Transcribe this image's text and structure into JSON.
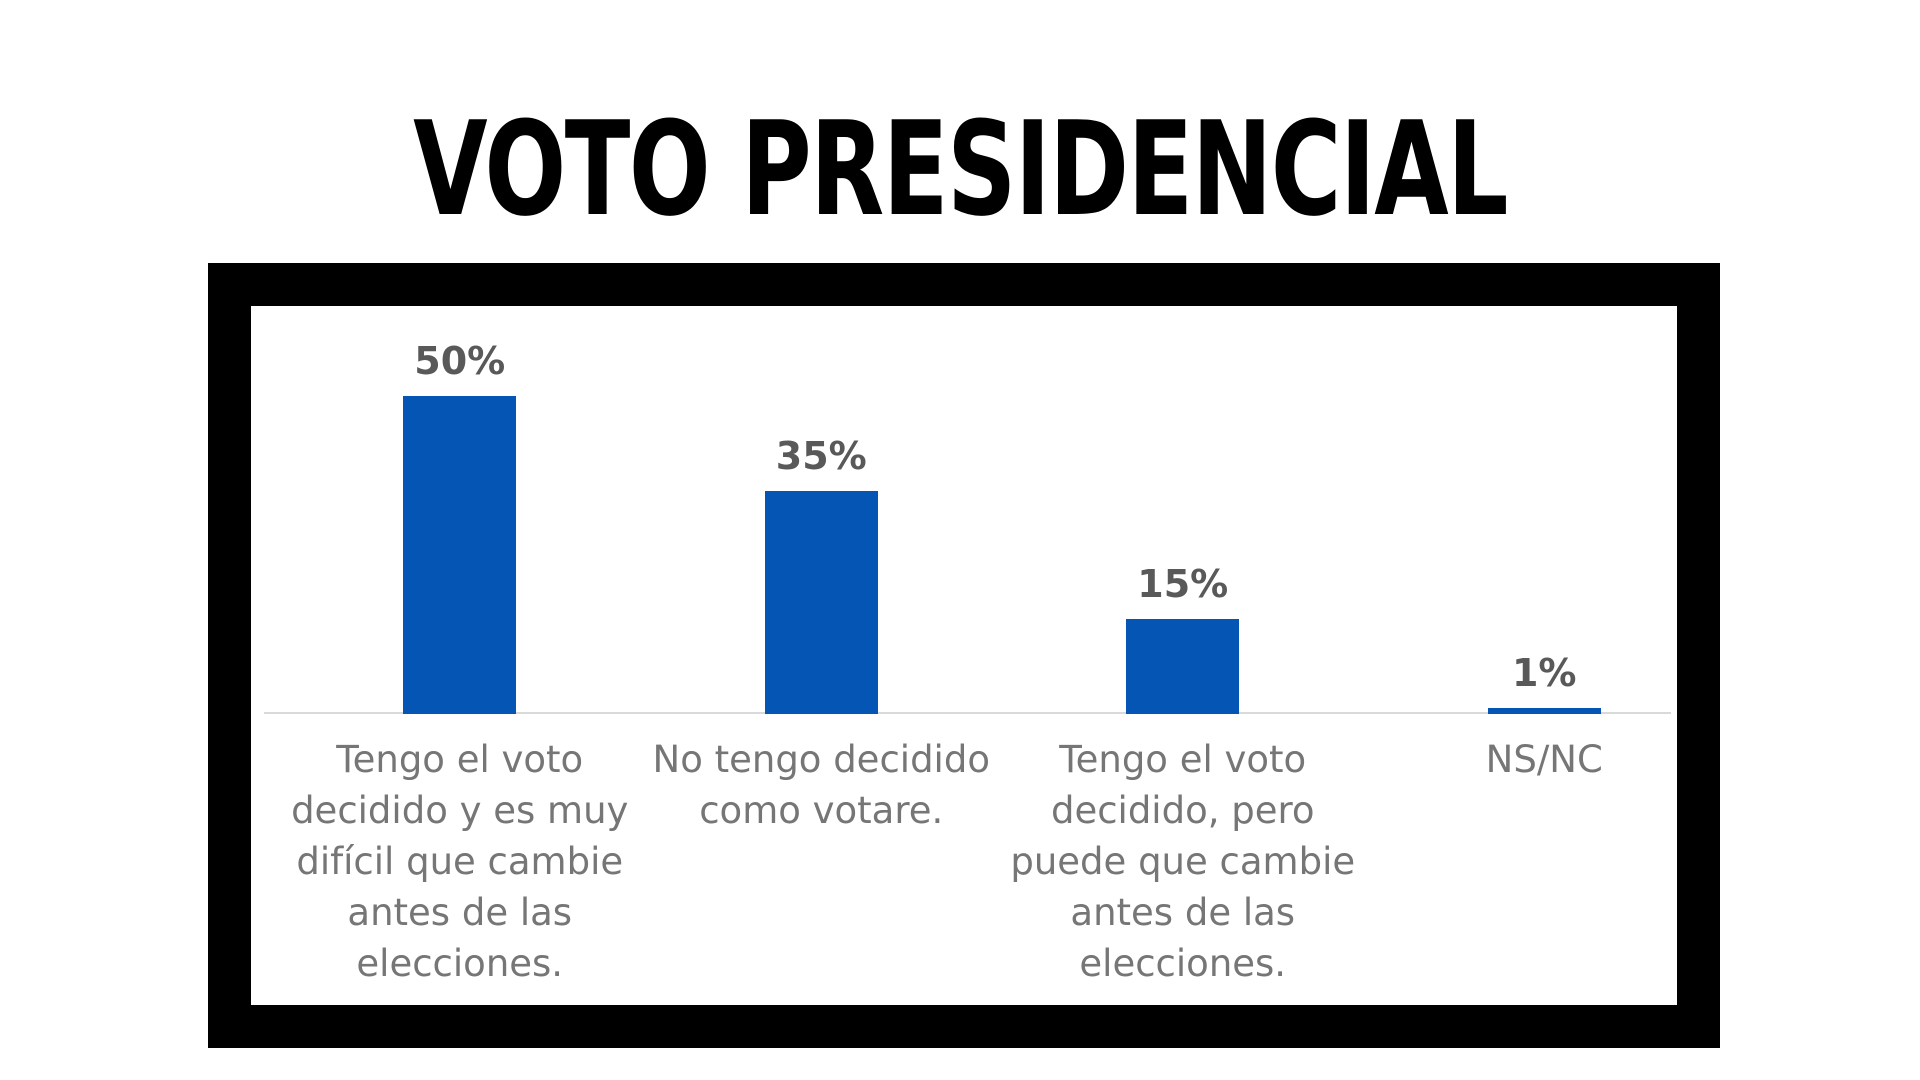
{
  "page": {
    "background": "#FFFFFF"
  },
  "chart_data": {
    "type": "bar",
    "title": "VOTO PRESIDENCIAL",
    "categories": [
      "Tengo el voto decidido y es muy difícil que cambie antes de las elecciones.",
      "No tengo decidido como votare.",
      "Tengo el voto decidido, pero puede que cambie antes de las elecciones.",
      "NS/NC"
    ],
    "category_lines": [
      "Tengo el voto\ndecidido y es muy\ndifícil que cambie\nantes de las\nelecciones.",
      "No tengo decidido\ncomo votare.",
      "Tengo el voto\ndecidido, pero\npuede que cambie\nantes de las\nelecciones.",
      "NS/NC"
    ],
    "values": [
      50,
      35,
      15,
      1
    ],
    "value_labels": [
      "50%",
      "35%",
      "15%",
      "1%"
    ],
    "xlabel": "",
    "ylabel": "",
    "ylim": [
      0,
      64
    ],
    "grid": false,
    "legend": "none",
    "bar_color": "#0555B4",
    "value_label_color": "#595959",
    "category_label_color": "#767676",
    "axis_line_color": "#D9D9D9",
    "frame_color": "#000000",
    "title_color": "#000000"
  }
}
